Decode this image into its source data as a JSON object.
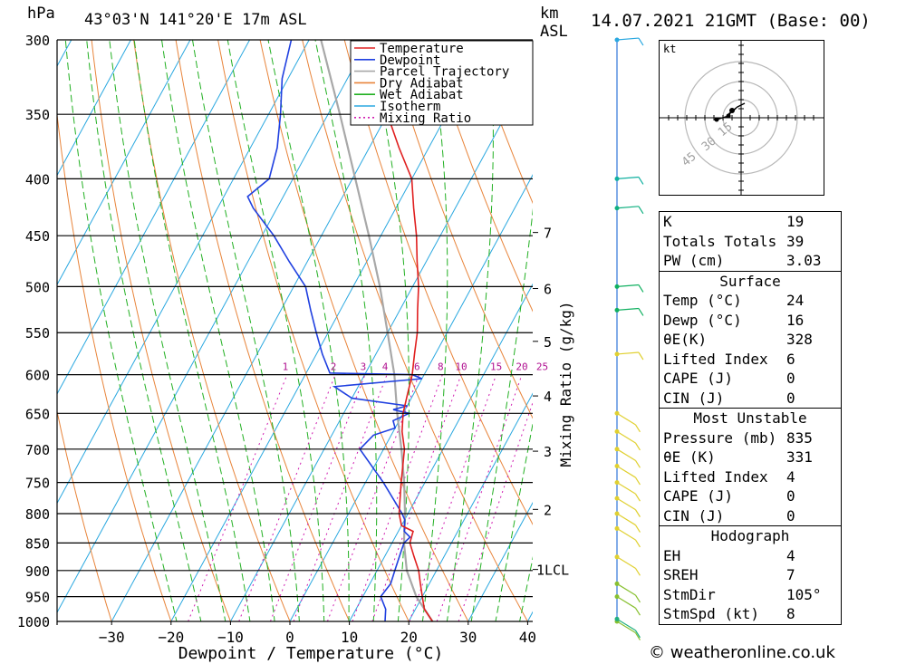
{
  "header": {
    "hpa_label": "hPa",
    "location": "43°03'N 141°20'E 17m ASL",
    "km_label": "km",
    "asl_label": "ASL",
    "datetime": "14.07.2021 21GMT (Base: 00)"
  },
  "chart_data": {
    "type": "line",
    "title": "43°03'N 141°20'E 17m ASL",
    "xlabel": "Dewpoint / Temperature (°C)",
    "ylabel": "hPa",
    "ylabel_right": "Mixing Ratio (g/kg)",
    "xlim": [
      -40,
      40
    ],
    "ylim": [
      1000,
      300
    ],
    "x_ticks": [
      "−30",
      "−20",
      "−10",
      "0",
      "10",
      "20",
      "30",
      "40"
    ],
    "pressure_ticks": [
      "300",
      "350",
      "400",
      "450",
      "500",
      "550",
      "600",
      "650",
      "700",
      "750",
      "800",
      "850",
      "900",
      "950",
      "1000"
    ],
    "km_ticks": [
      "1LCL",
      "2",
      "3",
      "4",
      "5",
      "6",
      "7"
    ],
    "mixing_ratio_labels": [
      "1",
      "2",
      "3",
      "4",
      "6",
      "8",
      "10",
      "15",
      "20",
      "25"
    ],
    "legend": [
      "Temperature",
      "Dewpoint",
      "Parcel Trajectory",
      "Dry Adiabat",
      "Wet Adiabat",
      "Isotherm",
      "Mixing Ratio"
    ],
    "series": [
      {
        "name": "Temperature",
        "color": "#e02020",
        "points": [
          [
            1000,
            24
          ],
          [
            975,
            21.5
          ],
          [
            950,
            20
          ],
          [
            925,
            18.5
          ],
          [
            900,
            17
          ],
          [
            875,
            15
          ],
          [
            850,
            13
          ],
          [
            830,
            12.5
          ],
          [
            820,
            10
          ],
          [
            800,
            8.5
          ],
          [
            750,
            6
          ],
          [
            700,
            3.5
          ],
          [
            675,
            1.5
          ],
          [
            650,
            0
          ],
          [
            625,
            -1
          ],
          [
            600,
            -2
          ],
          [
            575,
            -3.5
          ],
          [
            550,
            -5
          ],
          [
            525,
            -7
          ],
          [
            500,
            -9
          ],
          [
            475,
            -11.5
          ],
          [
            450,
            -14
          ],
          [
            425,
            -17
          ],
          [
            400,
            -20
          ],
          [
            375,
            -25
          ],
          [
            350,
            -30
          ],
          [
            325,
            -35
          ],
          [
            300,
            -40
          ]
        ]
      },
      {
        "name": "Dewpoint",
        "color": "#2040e0",
        "points": [
          [
            1000,
            16
          ],
          [
            975,
            15
          ],
          [
            950,
            13
          ],
          [
            925,
            13.5
          ],
          [
            900,
            13
          ],
          [
            875,
            12.5
          ],
          [
            850,
            12
          ],
          [
            840,
            12.5
          ],
          [
            830,
            11
          ],
          [
            810,
            10
          ],
          [
            800,
            9
          ],
          [
            750,
            3
          ],
          [
            700,
            -4
          ],
          [
            680,
            -3
          ],
          [
            670,
            0
          ],
          [
            660,
            -1
          ],
          [
            650,
            1
          ],
          [
            645,
            -2
          ],
          [
            640,
            0
          ],
          [
            630,
            -10
          ],
          [
            615,
            -14
          ],
          [
            605,
            0
          ],
          [
            600,
            -2
          ],
          [
            598,
            -16
          ],
          [
            575,
            -19
          ],
          [
            550,
            -22
          ],
          [
            525,
            -25
          ],
          [
            500,
            -28
          ],
          [
            475,
            -33
          ],
          [
            450,
            -38
          ],
          [
            425,
            -44
          ],
          [
            415,
            -46
          ],
          [
            400,
            -44
          ],
          [
            375,
            -45.5
          ],
          [
            350,
            -48
          ],
          [
            325,
            -51
          ],
          [
            300,
            -53
          ]
        ]
      },
      {
        "name": "Parcel Trajectory",
        "color": "#a8a8a8",
        "points": [
          [
            1000,
            24
          ],
          [
            950,
            19
          ],
          [
            900,
            15
          ],
          [
            850,
            12
          ],
          [
            800,
            9.5
          ],
          [
            750,
            6.5
          ],
          [
            700,
            3
          ],
          [
            650,
            -1
          ],
          [
            600,
            -5
          ],
          [
            550,
            -10
          ],
          [
            500,
            -15.5
          ],
          [
            450,
            -22
          ],
          [
            400,
            -29.5
          ],
          [
            350,
            -38
          ],
          [
            300,
            -48
          ]
        ]
      }
    ]
  },
  "wind": {
    "count": 18
  },
  "hodograph": {
    "unit_label": "kt",
    "rings": [
      "15",
      "30",
      "45"
    ]
  },
  "indices": [
    {
      "label": "K",
      "value": "19"
    },
    {
      "label": "Totals Totals",
      "value": "39"
    },
    {
      "label": "PW (cm)",
      "value": "3.03"
    }
  ],
  "surface": {
    "title": "Surface",
    "rows": [
      {
        "label": "Temp (°C)",
        "value": "24"
      },
      {
        "label": "Dewp (°C)",
        "value": "16"
      },
      {
        "label": "θE(K)",
        "value": "328"
      },
      {
        "label": "Lifted Index",
        "value": "6"
      },
      {
        "label": "CAPE (J)",
        "value": "0"
      },
      {
        "label": "CIN (J)",
        "value": "0"
      }
    ]
  },
  "most_unstable": {
    "title": "Most Unstable",
    "rows": [
      {
        "label": "Pressure (mb)",
        "value": "835"
      },
      {
        "label": "θE (K)",
        "value": "331"
      },
      {
        "label": "Lifted Index",
        "value": "4"
      },
      {
        "label": "CAPE (J)",
        "value": "0"
      },
      {
        "label": "CIN (J)",
        "value": "0"
      }
    ]
  },
  "hodo_table": {
    "title": "Hodograph",
    "rows": [
      {
        "label": "EH",
        "value": "4"
      },
      {
        "label": "SREH",
        "value": "7"
      },
      {
        "label": "StmDir",
        "value": "105°"
      },
      {
        "label": "StmSpd (kt)",
        "value": "8"
      }
    ]
  },
  "credit": "© weatheronline.co.uk"
}
